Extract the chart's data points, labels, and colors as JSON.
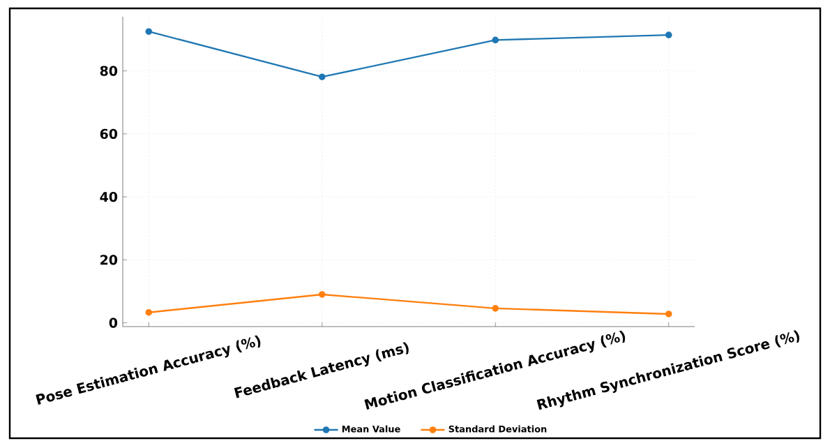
{
  "chart_data": {
    "type": "line",
    "categories": [
      "Pose Estimation Accuracy (%)",
      "Feedback Latency (ms)",
      "Motion Classification Accuracy (%)",
      "Rhythm Synchronization Score (%)"
    ],
    "series": [
      {
        "name": "Mean Value",
        "color": "#1f77b4",
        "values": [
          92.5,
          78.1,
          89.8,
          91.4
        ]
      },
      {
        "name": "Standard Deviation",
        "color": "#ff7f0e",
        "values": [
          3.3,
          9.0,
          4.6,
          2.8
        ]
      }
    ],
    "ylim": [
      -1.2,
      97.2
    ],
    "yticks": [
      0,
      20,
      40,
      60,
      80
    ],
    "grid": true,
    "legend": "bottom",
    "marker": "circle",
    "line_style": "solid"
  }
}
